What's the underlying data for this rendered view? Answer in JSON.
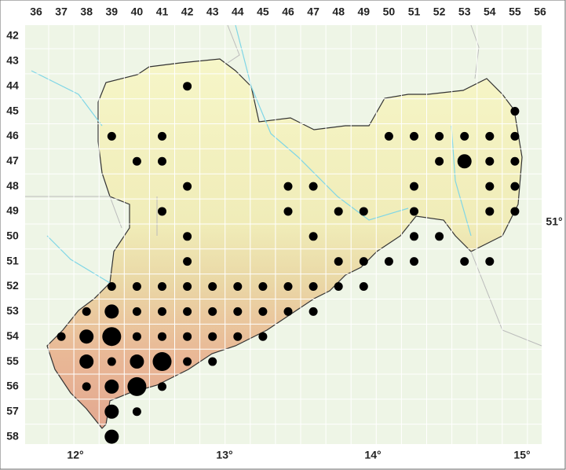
{
  "columns": [
    36,
    37,
    38,
    39,
    40,
    41,
    42,
    43,
    44,
    45,
    46,
    47,
    48,
    49,
    50,
    51,
    52,
    53,
    54,
    55,
    56
  ],
  "rows": [
    42,
    43,
    44,
    45,
    46,
    47,
    48,
    49,
    50,
    51,
    52,
    53,
    54,
    55,
    56,
    57,
    58
  ],
  "longitude_labels": [
    "12°",
    "13°",
    "14°",
    "15°"
  ],
  "latitude_label": "51°",
  "occurrences": [
    {
      "col": 42,
      "row": 44,
      "size": 1
    },
    {
      "col": 55,
      "row": 45,
      "size": 1
    },
    {
      "col": 39,
      "row": 46,
      "size": 1
    },
    {
      "col": 41,
      "row": 46,
      "size": 1
    },
    {
      "col": 50,
      "row": 46,
      "size": 1
    },
    {
      "col": 51,
      "row": 46,
      "size": 1
    },
    {
      "col": 52,
      "row": 46,
      "size": 1
    },
    {
      "col": 53,
      "row": 46,
      "size": 1
    },
    {
      "col": 54,
      "row": 46,
      "size": 1
    },
    {
      "col": 55,
      "row": 46,
      "size": 1
    },
    {
      "col": 40,
      "row": 47,
      "size": 1
    },
    {
      "col": 41,
      "row": 47,
      "size": 1
    },
    {
      "col": 52,
      "row": 47,
      "size": 1
    },
    {
      "col": 53,
      "row": 47,
      "size": 2
    },
    {
      "col": 54,
      "row": 47,
      "size": 1
    },
    {
      "col": 55,
      "row": 47,
      "size": 1
    },
    {
      "col": 42,
      "row": 48,
      "size": 1
    },
    {
      "col": 46,
      "row": 48,
      "size": 1
    },
    {
      "col": 47,
      "row": 48,
      "size": 1
    },
    {
      "col": 51,
      "row": 48,
      "size": 1
    },
    {
      "col": 54,
      "row": 48,
      "size": 1
    },
    {
      "col": 55,
      "row": 48,
      "size": 1
    },
    {
      "col": 41,
      "row": 49,
      "size": 1
    },
    {
      "col": 46,
      "row": 49,
      "size": 1
    },
    {
      "col": 48,
      "row": 49,
      "size": 1
    },
    {
      "col": 49,
      "row": 49,
      "size": 1
    },
    {
      "col": 51,
      "row": 49,
      "size": 1
    },
    {
      "col": 54,
      "row": 49,
      "size": 1
    },
    {
      "col": 55,
      "row": 49,
      "size": 1
    },
    {
      "col": 42,
      "row": 50,
      "size": 1
    },
    {
      "col": 47,
      "row": 50,
      "size": 1
    },
    {
      "col": 51,
      "row": 50,
      "size": 1
    },
    {
      "col": 52,
      "row": 50,
      "size": 1
    },
    {
      "col": 42,
      "row": 51,
      "size": 1
    },
    {
      "col": 48,
      "row": 51,
      "size": 1
    },
    {
      "col": 49,
      "row": 51,
      "size": 1
    },
    {
      "col": 50,
      "row": 51,
      "size": 1
    },
    {
      "col": 51,
      "row": 51,
      "size": 1
    },
    {
      "col": 53,
      "row": 51,
      "size": 1
    },
    {
      "col": 54,
      "row": 51,
      "size": 1
    },
    {
      "col": 39,
      "row": 52,
      "size": 1
    },
    {
      "col": 40,
      "row": 52,
      "size": 1
    },
    {
      "col": 41,
      "row": 52,
      "size": 1
    },
    {
      "col": 42,
      "row": 52,
      "size": 1
    },
    {
      "col": 43,
      "row": 52,
      "size": 1
    },
    {
      "col": 44,
      "row": 52,
      "size": 1
    },
    {
      "col": 45,
      "row": 52,
      "size": 1
    },
    {
      "col": 46,
      "row": 52,
      "size": 1
    },
    {
      "col": 47,
      "row": 52,
      "size": 1
    },
    {
      "col": 48,
      "row": 52,
      "size": 1
    },
    {
      "col": 49,
      "row": 52,
      "size": 1
    },
    {
      "col": 38,
      "row": 53,
      "size": 1
    },
    {
      "col": 39,
      "row": 53,
      "size": 2
    },
    {
      "col": 40,
      "row": 53,
      "size": 1
    },
    {
      "col": 41,
      "row": 53,
      "size": 1
    },
    {
      "col": 42,
      "row": 53,
      "size": 1
    },
    {
      "col": 43,
      "row": 53,
      "size": 1
    },
    {
      "col": 44,
      "row": 53,
      "size": 1
    },
    {
      "col": 45,
      "row": 53,
      "size": 1
    },
    {
      "col": 46,
      "row": 53,
      "size": 1
    },
    {
      "col": 47,
      "row": 53,
      "size": 1
    },
    {
      "col": 37,
      "row": 54,
      "size": 1
    },
    {
      "col": 38,
      "row": 54,
      "size": 2
    },
    {
      "col": 39,
      "row": 54,
      "size": 3
    },
    {
      "col": 40,
      "row": 54,
      "size": 1
    },
    {
      "col": 41,
      "row": 54,
      "size": 1
    },
    {
      "col": 42,
      "row": 54,
      "size": 1
    },
    {
      "col": 43,
      "row": 54,
      "size": 1
    },
    {
      "col": 44,
      "row": 54,
      "size": 1
    },
    {
      "col": 45,
      "row": 54,
      "size": 1
    },
    {
      "col": 38,
      "row": 55,
      "size": 2
    },
    {
      "col": 39,
      "row": 55,
      "size": 1
    },
    {
      "col": 40,
      "row": 55,
      "size": 2
    },
    {
      "col": 41,
      "row": 55,
      "size": 3
    },
    {
      "col": 42,
      "row": 55,
      "size": 1
    },
    {
      "col": 43,
      "row": 55,
      "size": 1
    },
    {
      "col": 38,
      "row": 56,
      "size": 1
    },
    {
      "col": 39,
      "row": 56,
      "size": 2
    },
    {
      "col": 40,
      "row": 56,
      "size": 3
    },
    {
      "col": 41,
      "row": 56,
      "size": 1
    },
    {
      "col": 39,
      "row": 57,
      "size": 2
    },
    {
      "col": 40,
      "row": 57,
      "size": 1
    },
    {
      "col": 39,
      "row": 58,
      "size": 2
    }
  ]
}
